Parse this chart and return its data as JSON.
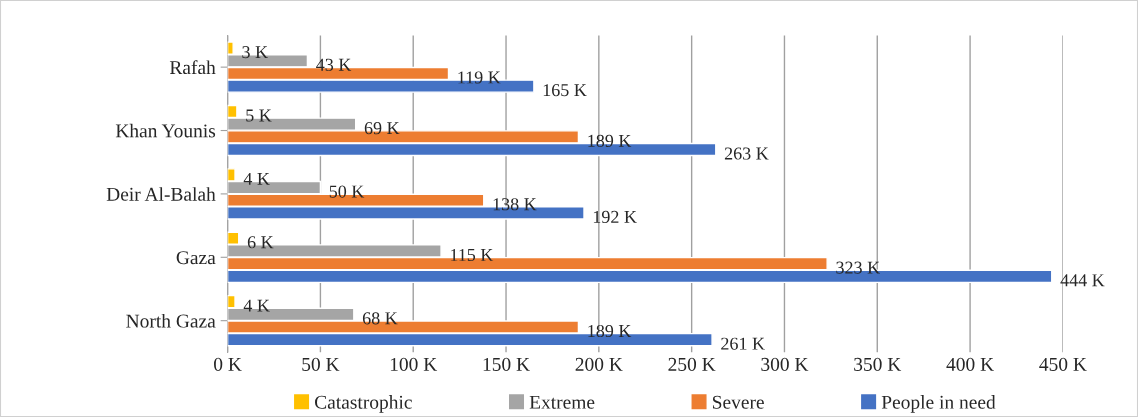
{
  "chart_data": {
    "type": "bar",
    "orientation": "horizontal",
    "categories": [
      "Rafah",
      "Khan Younis",
      "Deir Al-Balah",
      "Gaza",
      "North Gaza"
    ],
    "series": [
      {
        "name": "Catastrophic",
        "color": "#ffc000",
        "values": [
          3,
          5,
          4,
          6,
          4
        ],
        "value_labels": [
          "3 K",
          "5 K",
          "4 K",
          "6 K",
          "4 K"
        ]
      },
      {
        "name": "Extreme",
        "color": "#a5a5a5",
        "values": [
          43,
          69,
          50,
          115,
          68
        ],
        "value_labels": [
          "43 K",
          "69 K",
          "50 K",
          "115 K",
          "68 K"
        ]
      },
      {
        "name": "Severe",
        "color": "#ed7d31",
        "values": [
          119,
          189,
          138,
          323,
          189
        ],
        "value_labels": [
          "119 K",
          "189 K",
          "138 K",
          "323 K",
          "189 K"
        ]
      },
      {
        "name": "People in need",
        "color": "#4472c4",
        "values": [
          165,
          263,
          192,
          444,
          261
        ],
        "value_labels": [
          "165 K",
          "263 K",
          "192 K",
          "444 K",
          "261 K"
        ]
      }
    ],
    "xlim": [
      0,
      450
    ],
    "xticks": [
      {
        "value": 0,
        "label": "0 K"
      },
      {
        "value": 50,
        "label": "50 K"
      },
      {
        "value": 100,
        "label": "100 K"
      },
      {
        "value": 150,
        "label": "150 K"
      },
      {
        "value": 200,
        "label": "200 K"
      },
      {
        "value": 250,
        "label": "250 K"
      },
      {
        "value": 300,
        "label": "300 K"
      },
      {
        "value": 350,
        "label": "350 K"
      },
      {
        "value": 400,
        "label": "400 K"
      },
      {
        "value": 450,
        "label": "450 K"
      }
    ],
    "grid": "x",
    "legend": "bottom"
  }
}
